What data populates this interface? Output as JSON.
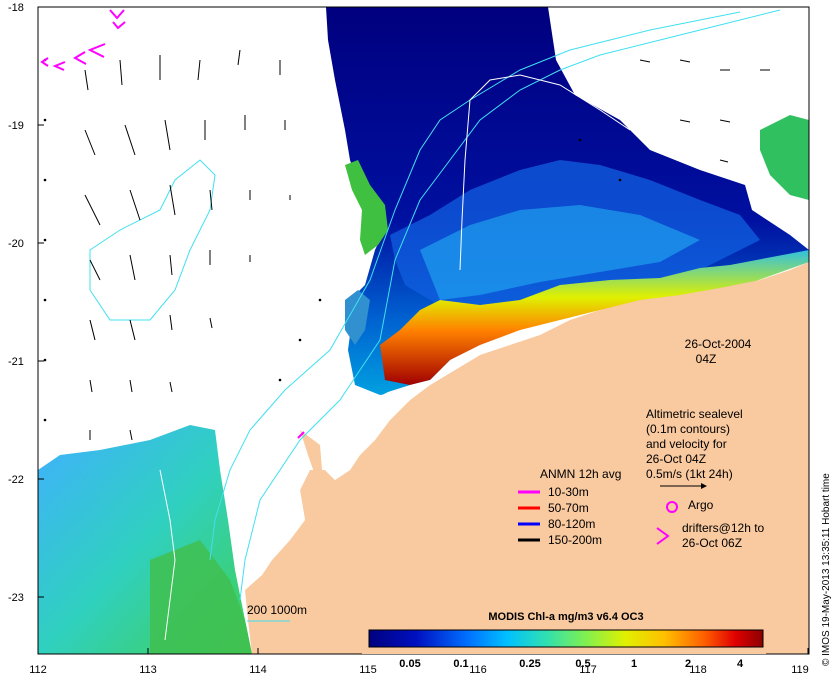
{
  "map": {
    "lon_ticks": [
      "112",
      "113",
      "114",
      "115",
      "116",
      "117",
      "118",
      "119"
    ],
    "lat_ticks": [
      "-18",
      "-19",
      "-20",
      "-21",
      "-22",
      "-23"
    ],
    "date_line1": "26-Oct-2004",
    "date_line2": "04Z",
    "altimetric": [
      "Altimetric sealevel",
      "(0.1m contours)",
      "and velocity for",
      "26-Oct 04Z",
      "0.5m/s (1kt 24h)"
    ],
    "anmn_title": "ANMN 12h avg",
    "anmn_items": [
      {
        "label": "10-30m",
        "color": "#ff00ff"
      },
      {
        "label": "50-70m",
        "color": "#ff0000"
      },
      {
        "label": "80-120m",
        "color": "#0000ff"
      },
      {
        "label": "150-200m",
        "color": "#000000"
      }
    ],
    "argo_label": "Argo",
    "drifters_line1": "drifters@12h to",
    "drifters_line2": "26-Oct 06Z",
    "isobath_label": "200  1000m",
    "colorbar_title": "MODIS Chl-a mg/m3 v6.4 OC3",
    "colorbar_ticks": [
      "0.05",
      "0.1",
      "0.25",
      "0.5",
      "1",
      "2",
      "4"
    ],
    "credit": "© IMOS 19-May-2013 13:35:11 Hobart time",
    "colors": {
      "land": "#f9c99f",
      "chl_low": "#00007f",
      "chl_high": "#8b0000",
      "contour": "#40e0f0",
      "argo": "#ff00ff"
    }
  }
}
